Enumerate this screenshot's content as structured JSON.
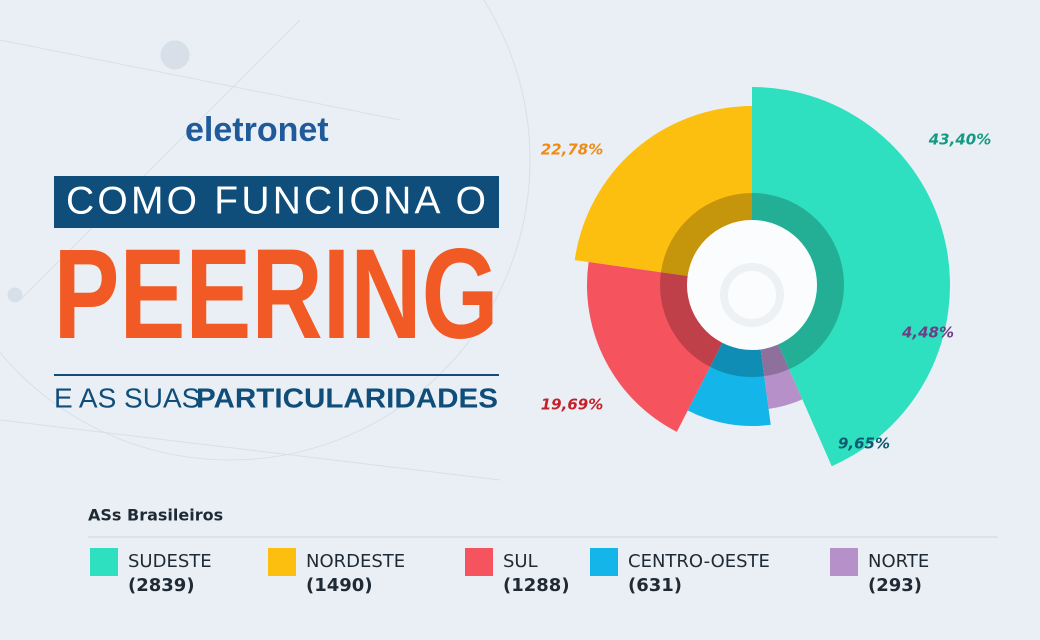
{
  "header": {
    "logo": "eletronet",
    "title_line1": "COMO FUNCIONA O",
    "title_main": "PEERING",
    "title_line3_light": "E AS SUAS",
    "title_line3_bold": "PARTICULARIDADES"
  },
  "chart_data": {
    "type": "pie",
    "categories": [
      "SUDESTE",
      "NORDESTE",
      "SUL",
      "CENTRO-OESTE",
      "NORTE"
    ],
    "values": [
      43.4,
      22.78,
      19.69,
      9.65,
      4.48
    ],
    "value_labels": [
      "43,40%",
      "22,78%",
      "19,69%",
      "9,65%",
      "4,48%"
    ],
    "colors": [
      "#2ee0bf",
      "#fdbf0f",
      "#f5535d",
      "#14b5e8",
      "#b690c9"
    ],
    "label_colors": [
      "#149a84",
      "#ef8a12",
      "#c4202a",
      "#0d5a72",
      "#6c3f85"
    ],
    "legend": {
      "title": "ASs Brasileiros",
      "counts": [
        2839,
        1490,
        1288,
        631,
        293
      ],
      "count_labels": [
        "(2839)",
        "(1490)",
        "(1288)",
        "(631)",
        "(293)"
      ]
    }
  }
}
